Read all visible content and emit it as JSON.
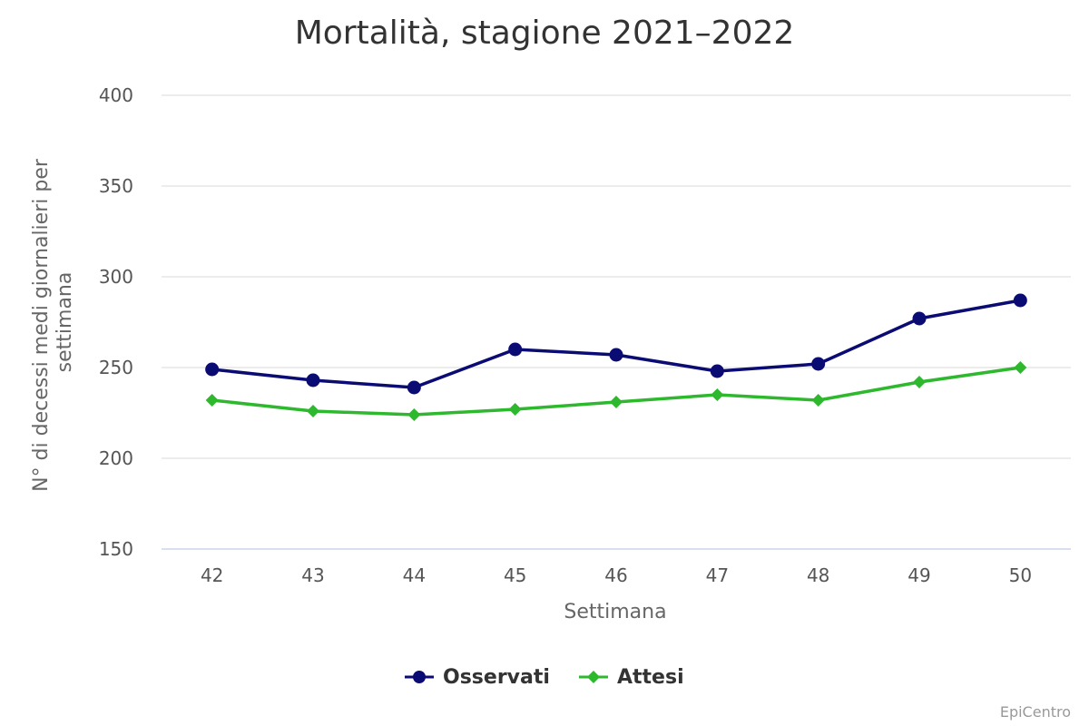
{
  "chart_data": {
    "type": "line",
    "title": "Mortalità, stagione 2021–2022",
    "xlabel": "Settimana",
    "ylabel_lines": [
      "N° di decessi medi giornalieri per",
      "settimana"
    ],
    "categories": [
      "42",
      "43",
      "44",
      "45",
      "46",
      "47",
      "48",
      "49",
      "50"
    ],
    "ylim": [
      150,
      400
    ],
    "yticks": [
      "150",
      "200",
      "250",
      "300",
      "350",
      "400"
    ],
    "grid": true,
    "legend_position": "bottom-center",
    "series": [
      {
        "name": "Osservati",
        "color": "#0b0b74",
        "marker": "circle",
        "values": [
          249,
          243,
          239,
          260,
          257,
          248,
          252,
          277,
          287
        ]
      },
      {
        "name": "Attesi",
        "color": "#2eb82e",
        "marker": "diamond",
        "values": [
          232,
          226,
          224,
          227,
          231,
          235,
          232,
          242,
          250
        ]
      }
    ],
    "credit": "EpiCentro"
  }
}
